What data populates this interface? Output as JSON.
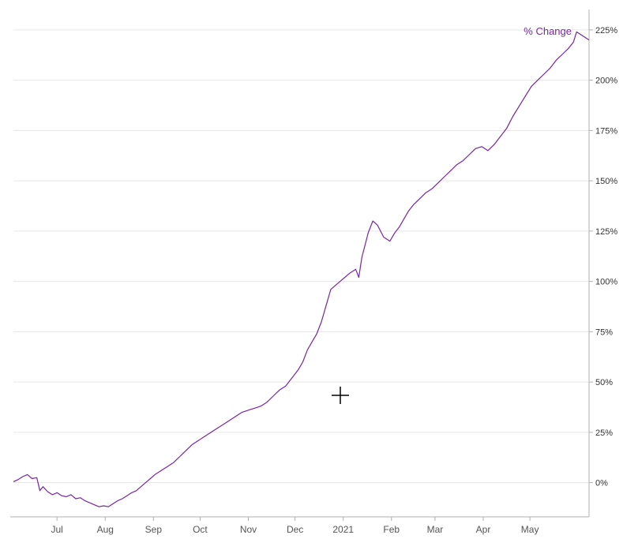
{
  "colors": {
    "series": "#7b23a8",
    "grid": "#e6e6e6",
    "axis": "#b0b0b0",
    "cursor": "#000000"
  },
  "cursor_icon": "crosshair-cursor-icon",
  "chart_data": {
    "type": "line",
    "title": "",
    "xlabel": "",
    "ylabel": "",
    "legend_placement": "top-right, inline at series end",
    "grid": true,
    "x_tick_labels": [
      "Jul",
      "Aug",
      "Sep",
      "Oct",
      "Nov",
      "Dec",
      "2021",
      "Feb",
      "Mar",
      "Apr",
      "May"
    ],
    "x_tick_dates": [
      "2020-07-01",
      "2020-08-01",
      "2020-09-01",
      "2020-10-01",
      "2020-11-01",
      "2020-12-01",
      "2021-01-01",
      "2021-02-01",
      "2021-03-01",
      "2021-04-01",
      "2021-05-01"
    ],
    "xlim": [
      "2020-06-03",
      "2021-06-08"
    ],
    "y_tick_values": [
      0,
      25,
      50,
      75,
      100,
      125,
      150,
      175,
      200,
      225
    ],
    "y_tick_labels": [
      "0%",
      "25%",
      "50%",
      "75%",
      "100%",
      "125%",
      "150%",
      "175%",
      "200%",
      "225%"
    ],
    "ylim": [
      -17,
      232
    ],
    "series": [
      {
        "name": "% Change",
        "x": [
          "2020-06-03",
          "2020-06-06",
          "2020-06-09",
          "2020-06-12",
          "2020-06-15",
          "2020-06-18",
          "2020-06-20",
          "2020-06-22",
          "2020-06-25",
          "2020-06-28",
          "2020-07-01",
          "2020-07-04",
          "2020-07-07",
          "2020-07-10",
          "2020-07-13",
          "2020-07-16",
          "2020-07-19",
          "2020-07-22",
          "2020-07-25",
          "2020-07-28",
          "2020-07-31",
          "2020-08-03",
          "2020-08-06",
          "2020-08-09",
          "2020-08-12",
          "2020-08-15",
          "2020-08-18",
          "2020-08-21",
          "2020-08-24",
          "2020-08-27",
          "2020-08-30",
          "2020-09-02",
          "2020-09-06",
          "2020-09-10",
          "2020-09-14",
          "2020-09-18",
          "2020-09-22",
          "2020-09-26",
          "2020-09-30",
          "2020-10-04",
          "2020-10-08",
          "2020-10-12",
          "2020-10-16",
          "2020-10-20",
          "2020-10-24",
          "2020-10-28",
          "2020-11-01",
          "2020-11-05",
          "2020-11-09",
          "2020-11-13",
          "2020-11-17",
          "2020-11-21",
          "2020-11-25",
          "2020-11-29",
          "2020-12-03",
          "2020-12-06",
          "2020-12-09",
          "2020-12-12",
          "2020-12-15",
          "2020-12-18",
          "2020-12-21",
          "2020-12-24",
          "2020-12-27",
          "2020-12-30",
          "2021-01-02",
          "2021-01-05",
          "2021-01-07",
          "2021-01-09",
          "2021-01-11",
          "2021-01-13",
          "2021-01-15",
          "2021-01-17",
          "2021-01-20",
          "2021-01-23",
          "2021-01-27",
          "2021-01-31",
          "2021-02-03",
          "2021-02-06",
          "2021-02-09",
          "2021-02-12",
          "2021-02-15",
          "2021-02-19",
          "2021-02-23",
          "2021-02-27",
          "2021-03-03",
          "2021-03-07",
          "2021-03-11",
          "2021-03-15",
          "2021-03-19",
          "2021-03-23",
          "2021-03-27",
          "2021-03-31",
          "2021-04-04",
          "2021-04-08",
          "2021-04-12",
          "2021-04-16",
          "2021-04-20",
          "2021-04-24",
          "2021-04-28",
          "2021-05-02",
          "2021-05-06",
          "2021-05-10",
          "2021-05-14",
          "2021-05-18",
          "2021-05-22",
          "2021-05-26",
          "2021-05-29",
          "2021-05-31",
          "2021-06-04",
          "2021-06-08"
        ],
        "y": [
          0.5,
          1.5,
          3,
          4,
          2,
          2.5,
          -4,
          -2,
          -4.5,
          -6,
          -5,
          -6.5,
          -7,
          -6,
          -8,
          -7.5,
          -9,
          -10,
          -11,
          -12,
          -11.5,
          -12,
          -10.5,
          -9,
          -8,
          -6.5,
          -5,
          -4,
          -2,
          0,
          2,
          4,
          6,
          8,
          10,
          13,
          16,
          19,
          21,
          23,
          25,
          27,
          29,
          31,
          33,
          35,
          36,
          37,
          38,
          40,
          43,
          46,
          48,
          52,
          56,
          60,
          66,
          70,
          74,
          80,
          88,
          96,
          98,
          100,
          102,
          104,
          105,
          106,
          102,
          112,
          118,
          124,
          130,
          128,
          122,
          120,
          124,
          127,
          131,
          135,
          138,
          141,
          144,
          146,
          149,
          152,
          155,
          158,
          160,
          163,
          166,
          167,
          165,
          168,
          172,
          176,
          182,
          187,
          192,
          197,
          200,
          203,
          206,
          210,
          213,
          216,
          219,
          224,
          222,
          220
        ]
      }
    ]
  }
}
